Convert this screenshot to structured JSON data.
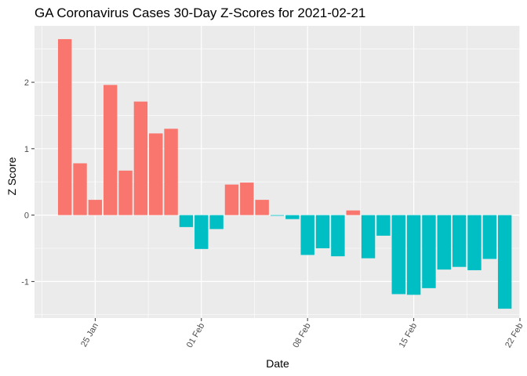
{
  "chart_data": {
    "type": "bar",
    "title": "GA Coronavirus Cases 30-Day Z-Scores for 2021-02-21",
    "xlabel": "Date",
    "ylabel": "Z Score",
    "x_tick_labels": [
      "25 Jan",
      "01 Feb",
      "08 Feb",
      "15 Feb",
      "22 Feb"
    ],
    "x_tick_dates": [
      "2021-01-25",
      "2021-02-01",
      "2021-02-08",
      "2021-02-15",
      "2021-02-22"
    ],
    "y_ticks": [
      -1,
      0,
      1,
      2
    ],
    "xlim": [
      "2021-01-21",
      "2021-02-22"
    ],
    "ylim": [
      -1.55,
      2.85
    ],
    "grid": true,
    "legend": "none",
    "colors": {
      "positive": "#F8766D",
      "negative": "#00BFC4",
      "panel": "#EBEBEB",
      "grid": "#FFFFFF"
    },
    "dates": [
      "2021-01-23",
      "2021-01-24",
      "2021-01-25",
      "2021-01-26",
      "2021-01-27",
      "2021-01-28",
      "2021-01-29",
      "2021-01-30",
      "2021-01-31",
      "2021-02-01",
      "2021-02-02",
      "2021-02-03",
      "2021-02-04",
      "2021-02-05",
      "2021-02-06",
      "2021-02-07",
      "2021-02-08",
      "2021-02-09",
      "2021-02-10",
      "2021-02-11",
      "2021-02-12",
      "2021-02-13",
      "2021-02-14",
      "2021-02-15",
      "2021-02-16",
      "2021-02-17",
      "2021-02-18",
      "2021-02-19",
      "2021-02-20",
      "2021-02-21"
    ],
    "values": [
      2.65,
      0.78,
      0.23,
      1.96,
      0.67,
      1.71,
      1.23,
      1.3,
      -0.18,
      -0.51,
      -0.21,
      0.46,
      0.49,
      0.23,
      -0.01,
      -0.06,
      -0.6,
      -0.5,
      -0.62,
      0.07,
      -0.65,
      -0.31,
      -1.19,
      -1.2,
      -1.1,
      -0.82,
      -0.78,
      -0.83,
      -0.66,
      -1.41
    ]
  }
}
